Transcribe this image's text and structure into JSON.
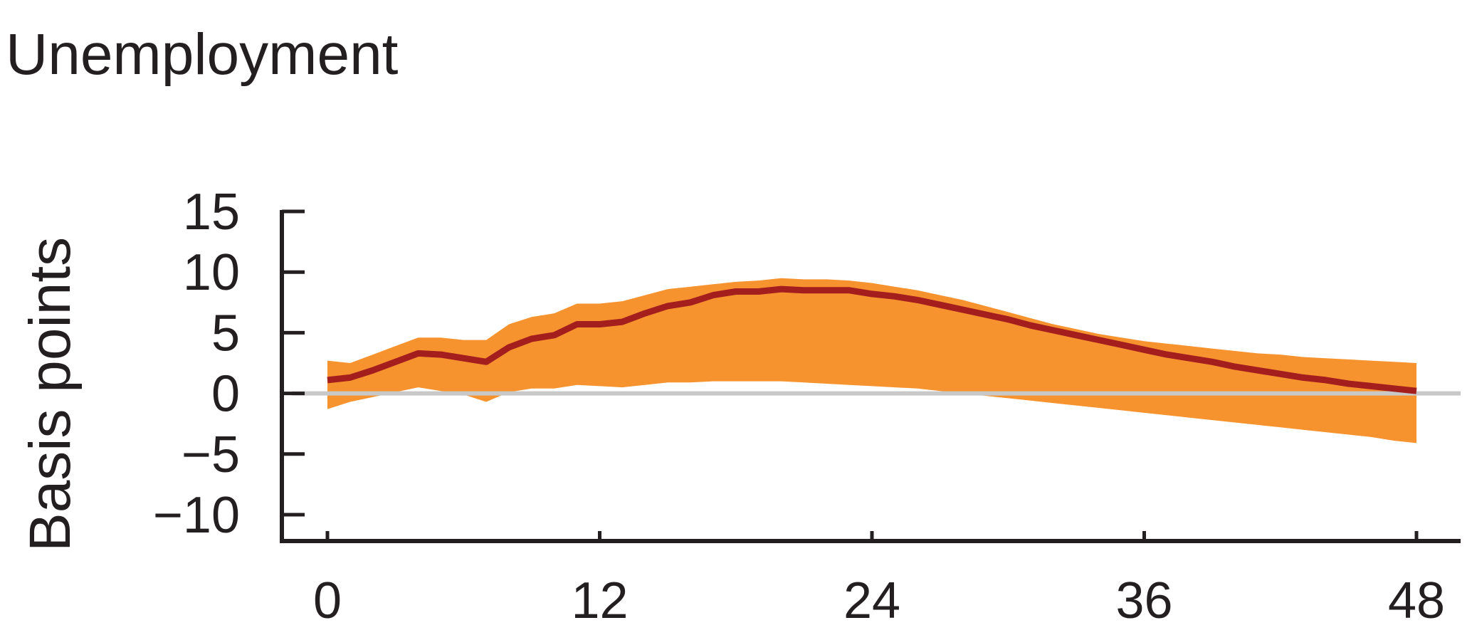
{
  "chart_data": {
    "type": "area",
    "title": "Unemployment",
    "xlabel": "",
    "ylabel": "Basis points",
    "xlim": [
      0,
      48
    ],
    "ylim": [
      -11,
      16
    ],
    "x_ticks": [
      0,
      12,
      24,
      36,
      48
    ],
    "y_ticks": [
      15,
      10,
      5,
      0,
      -5,
      -10
    ],
    "y_tick_labels": [
      "15",
      "10",
      "5",
      "0",
      "−5",
      "−10"
    ],
    "grid": false,
    "reference_line": 0,
    "series": [
      {
        "x": [
          0,
          1,
          2,
          3,
          4,
          5,
          6,
          7,
          8,
          9,
          10,
          11,
          12,
          13,
          14,
          15,
          16,
          17,
          18,
          19,
          20,
          21,
          22,
          23,
          24,
          25,
          26,
          27,
          28,
          29,
          30,
          31,
          32,
          33,
          34,
          35,
          36,
          37,
          38,
          39,
          40,
          41,
          42,
          43,
          44,
          45,
          46,
          47,
          48
        ],
        "values": [
          1.1,
          1.3,
          1.9,
          2.6,
          3.3,
          3.2,
          2.9,
          2.6,
          3.8,
          4.5,
          4.8,
          5.7,
          5.7,
          5.9,
          6.6,
          7.2,
          7.5,
          8.1,
          8.4,
          8.4,
          8.6,
          8.5,
          8.5,
          8.5,
          8.2,
          8.0,
          7.7,
          7.3,
          6.9,
          6.5,
          6.1,
          5.6,
          5.2,
          4.8,
          4.4,
          4.0,
          3.6,
          3.2,
          2.9,
          2.6,
          2.2,
          1.9,
          1.6,
          1.3,
          1.1,
          0.8,
          0.6,
          0.4,
          0.2
        ],
        "lower": [
          -1.3,
          -0.7,
          -0.3,
          0.1,
          0.5,
          0.2,
          -0.1,
          -0.7,
          0.1,
          0.4,
          0.4,
          0.7,
          0.6,
          0.5,
          0.7,
          0.9,
          0.9,
          1.0,
          1.0,
          1.0,
          1.0,
          0.9,
          0.8,
          0.7,
          0.6,
          0.5,
          0.4,
          0.2,
          0.0,
          -0.2,
          -0.4,
          -0.6,
          -0.8,
          -1.0,
          -1.2,
          -1.4,
          -1.6,
          -1.8,
          -2.0,
          -2.2,
          -2.4,
          -2.6,
          -2.8,
          -3.0,
          -3.2,
          -3.4,
          -3.6,
          -3.9,
          -4.1
        ],
        "upper": [
          2.7,
          2.5,
          3.2,
          3.9,
          4.6,
          4.6,
          4.4,
          4.4,
          5.7,
          6.3,
          6.6,
          7.4,
          7.4,
          7.6,
          8.1,
          8.6,
          8.8,
          9.0,
          9.2,
          9.3,
          9.5,
          9.4,
          9.4,
          9.3,
          9.1,
          8.8,
          8.5,
          8.1,
          7.7,
          7.2,
          6.7,
          6.2,
          5.7,
          5.3,
          4.9,
          4.6,
          4.3,
          4.1,
          3.9,
          3.7,
          3.5,
          3.3,
          3.2,
          3.0,
          2.9,
          2.8,
          2.7,
          2.6,
          2.5
        ]
      }
    ],
    "colors": {
      "band": "#f7932f",
      "line": "#a41e1e",
      "zero_line": "#c8c8c8",
      "axis": "#231f20"
    }
  }
}
